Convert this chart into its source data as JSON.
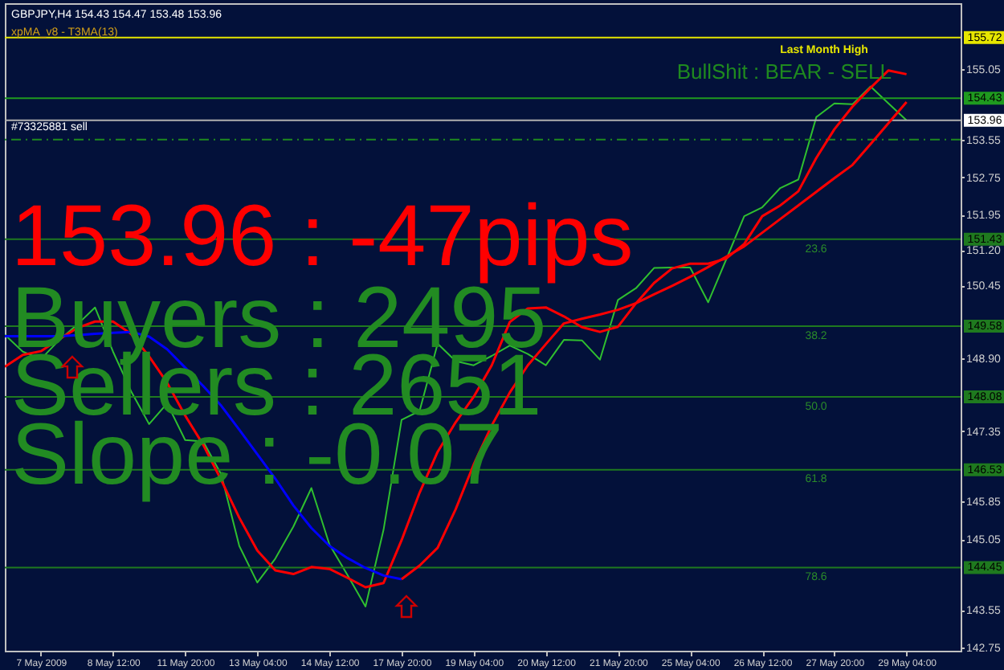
{
  "chart_data": {
    "type": "line",
    "title": "GBPJPY,H4  154.43 154.47 153.48 153.96",
    "subtitle": "xpMA_v8 - T3MA(13)",
    "categories": [
      null,
      null,
      "7 May 2009",
      null,
      null,
      null,
      "8 May 12:00",
      null,
      null,
      null,
      "11 May 20:00",
      null,
      null,
      null,
      "13 May 04:00",
      null,
      null,
      null,
      "14 May 12:00",
      null,
      null,
      null,
      "17 May 20:00",
      null,
      null,
      null,
      "19 May 04:00",
      null,
      null,
      null,
      "20 May 12:00",
      null,
      null,
      null,
      "21 May 20:00",
      null,
      null,
      null,
      "25 May 04:00",
      null,
      null,
      null,
      "26 May 12:00",
      null,
      null,
      null,
      "27 May 20:00",
      null,
      null,
      null,
      "29 May 04:00",
      null,
      null,
      null
    ],
    "ylim": [
      142.68,
      156.45
    ],
    "yticks": [
      155.05,
      153.55,
      152.75,
      151.95,
      {
        "value": 151.2,
        "label": "151.20"
      },
      150.45,
      {
        "value": 148.9,
        "label": "148.90"
      },
      147.35,
      145.85,
      145.05,
      143.55,
      142.75
    ],
    "grid": false,
    "series": [
      {
        "color": "#2fbf2f",
        "values": [
          149.4,
          149.04,
          148.88,
          149.28,
          149.61,
          149.98,
          149.04,
          148.2,
          147.5,
          147.94,
          147.16,
          147.13,
          146.43,
          144.91,
          144.13,
          144.64,
          145.32,
          146.14,
          144.94,
          144.29,
          143.62,
          145.25,
          147.59,
          147.78,
          149.21,
          148.84,
          148.75,
          148.95,
          149.17,
          148.99,
          148.75,
          149.29,
          149.28,
          148.87,
          150.14,
          150.39,
          150.82,
          150.83,
          150.83,
          150.09,
          151.0,
          151.92,
          152.11,
          152.52,
          152.7,
          154.03,
          154.32,
          154.3,
          154.68,
          154.32,
          153.96,
          null,
          null,
          null
        ]
      },
      {
        "color": "#ff0000",
        "values": [
          148.72,
          148.97,
          149.05,
          149.3,
          149.54,
          149.68,
          149.68,
          149.42,
          148.94,
          148.38,
          147.68,
          147.06,
          146.31,
          145.51,
          144.81,
          144.39,
          144.31,
          144.46,
          144.42,
          144.23,
          144.03,
          144.12,
          145.03,
          146.04,
          146.91,
          147.54,
          148.08,
          148.75,
          149.67,
          149.96,
          149.98,
          149.79,
          149.56,
          149.46,
          149.57,
          150.07,
          150.5,
          150.81,
          150.91,
          150.91,
          151.02,
          151.33,
          151.92,
          152.15,
          152.45,
          153.16,
          153.77,
          154.25,
          154.65,
          155.02,
          154.94,
          null,
          null,
          null
        ]
      },
      {
        "color": "#0000ff",
        "values": [
          149.37,
          149.37,
          149.37,
          149.37,
          149.39,
          149.42,
          149.44,
          149.46,
          149.36,
          149.09,
          148.7,
          148.31,
          147.89,
          147.38,
          146.86,
          146.34,
          145.77,
          145.29,
          144.91,
          144.65,
          144.44,
          144.28,
          144.2,
          null,
          null,
          null,
          null,
          null,
          null,
          null,
          null,
          null,
          null,
          null,
          null,
          null,
          null,
          null,
          null,
          null,
          null,
          null,
          null,
          null,
          null,
          null,
          null,
          null,
          null,
          null,
          null,
          null,
          null,
          null
        ]
      },
      {
        "color": "#ff0000",
        "values": [
          null,
          null,
          null,
          null,
          null,
          null,
          null,
          null,
          null,
          null,
          null,
          null,
          null,
          null,
          null,
          null,
          null,
          null,
          null,
          null,
          null,
          null,
          144.2,
          144.49,
          144.87,
          145.69,
          146.64,
          147.47,
          148.17,
          148.75,
          149.2,
          149.64,
          149.74,
          149.83,
          149.93,
          150.07,
          150.26,
          150.44,
          150.63,
          150.84,
          151.06,
          151.28,
          151.57,
          151.86,
          152.15,
          152.44,
          152.73,
          153.01,
          153.45,
          153.9,
          154.35,
          null,
          null,
          null
        ]
      }
    ],
    "ref_lines": [
      {
        "axis": "y",
        "value": 155.72,
        "label": "155.72",
        "color": "#e6e600"
      },
      {
        "axis": "y",
        "value": 154.43,
        "label": "154.43",
        "color": "#1f9a1f"
      },
      {
        "axis": "y",
        "value": 153.96,
        "label": "153.96",
        "color": "#b0b0b0"
      },
      {
        "axis": "y",
        "value": 153.55,
        "color": "#1f8a1f",
        "line_style": "dashed"
      },
      {
        "axis": "y",
        "value": 151.43,
        "label": "151.43",
        "color": "#1f7a1f"
      },
      {
        "axis": "y",
        "value": 149.58,
        "label": "149.58",
        "color": "#1f7a1f"
      },
      {
        "axis": "y",
        "value": 148.08,
        "label": "148.08",
        "color": "#1f7a1f"
      },
      {
        "axis": "y",
        "value": 146.53,
        "label": "146.53",
        "color": "#1f7a1f"
      },
      {
        "axis": "y",
        "value": 144.45,
        "label": "144.45",
        "color": "#1f7a1f"
      }
    ],
    "annotations": [
      "153.96 : -47pips",
      "Buyers : 2495",
      "Sellers : 2651",
      "Slope : -0.07",
      "BullShit : BEAR - SELL",
      "#73325881 sell",
      "23.6",
      "38.2",
      "50.0",
      "61.8",
      "78.6",
      "Last Month High"
    ]
  }
}
